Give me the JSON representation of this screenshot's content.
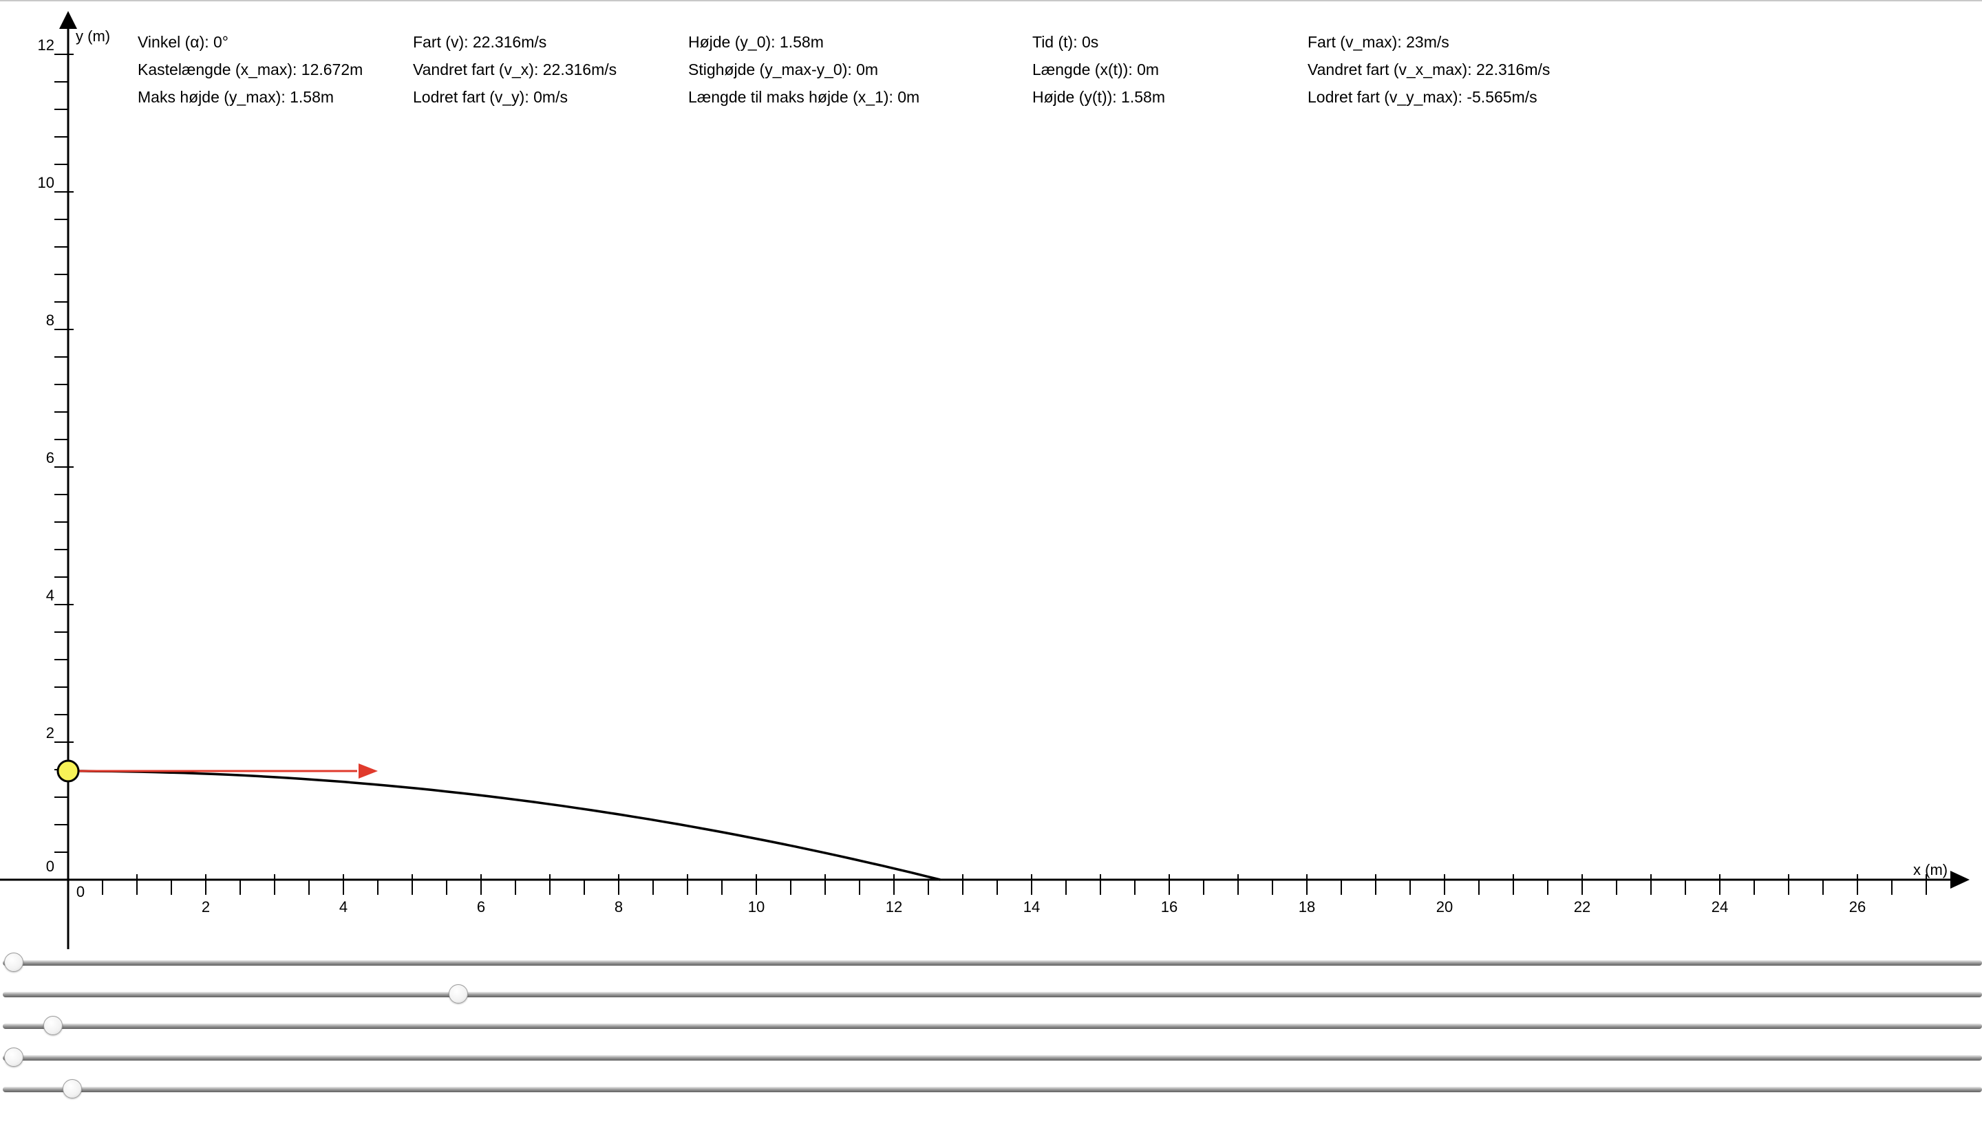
{
  "graph": {
    "y_axis_label": "y (m)",
    "x_axis_label": "x (m)",
    "x_tick_labels": [
      "0",
      "2",
      "4",
      "6",
      "8",
      "10",
      "12",
      "14",
      "16",
      "18",
      "20",
      "22",
      "24",
      "26"
    ],
    "y_tick_labels": [
      "0",
      "2",
      "4",
      "6",
      "8",
      "10",
      "12"
    ],
    "x_range": [
      0,
      27
    ],
    "y_range": [
      0,
      12
    ],
    "ball_color": "#f7f257",
    "arrow_color": "#e03a2c",
    "trajectory": {
      "x0": 0,
      "y0": 1.58,
      "x_max": 12.672
    }
  },
  "info_columns": [
    [
      "Vinkel (α): 0°",
      "Kastelængde (x_max): 12.672m",
      "Maks højde (y_max): 1.58m"
    ],
    [
      "Fart (v): 22.316m/s",
      "Vandret fart (v_x): 22.316m/s",
      "Lodret fart (v_y): 0m/s"
    ],
    [
      "Højde (y_0): 1.58m",
      "Stighøjde (y_max-y_0): 0m",
      "Længde til maks højde (x_1): 0m"
    ],
    [
      "Tid (t): 0s",
      "Længde (x(t)): 0m",
      "Højde (y(t)): 1.58m"
    ],
    [
      "Fart (v_max): 23m/s",
      "Vandret fart (v_x_max): 22.316m/s",
      "Lodret fart (v_y_max): -5.565m/s"
    ]
  ],
  "sliders": [
    {
      "name": "angle-slider",
      "value": 0.0
    },
    {
      "name": "speed-slider",
      "value": 0.227
    },
    {
      "name": "height-slider",
      "value": 0.02
    },
    {
      "name": "time-slider",
      "value": 0.0
    },
    {
      "name": "slider-5",
      "value": 0.03
    }
  ]
}
